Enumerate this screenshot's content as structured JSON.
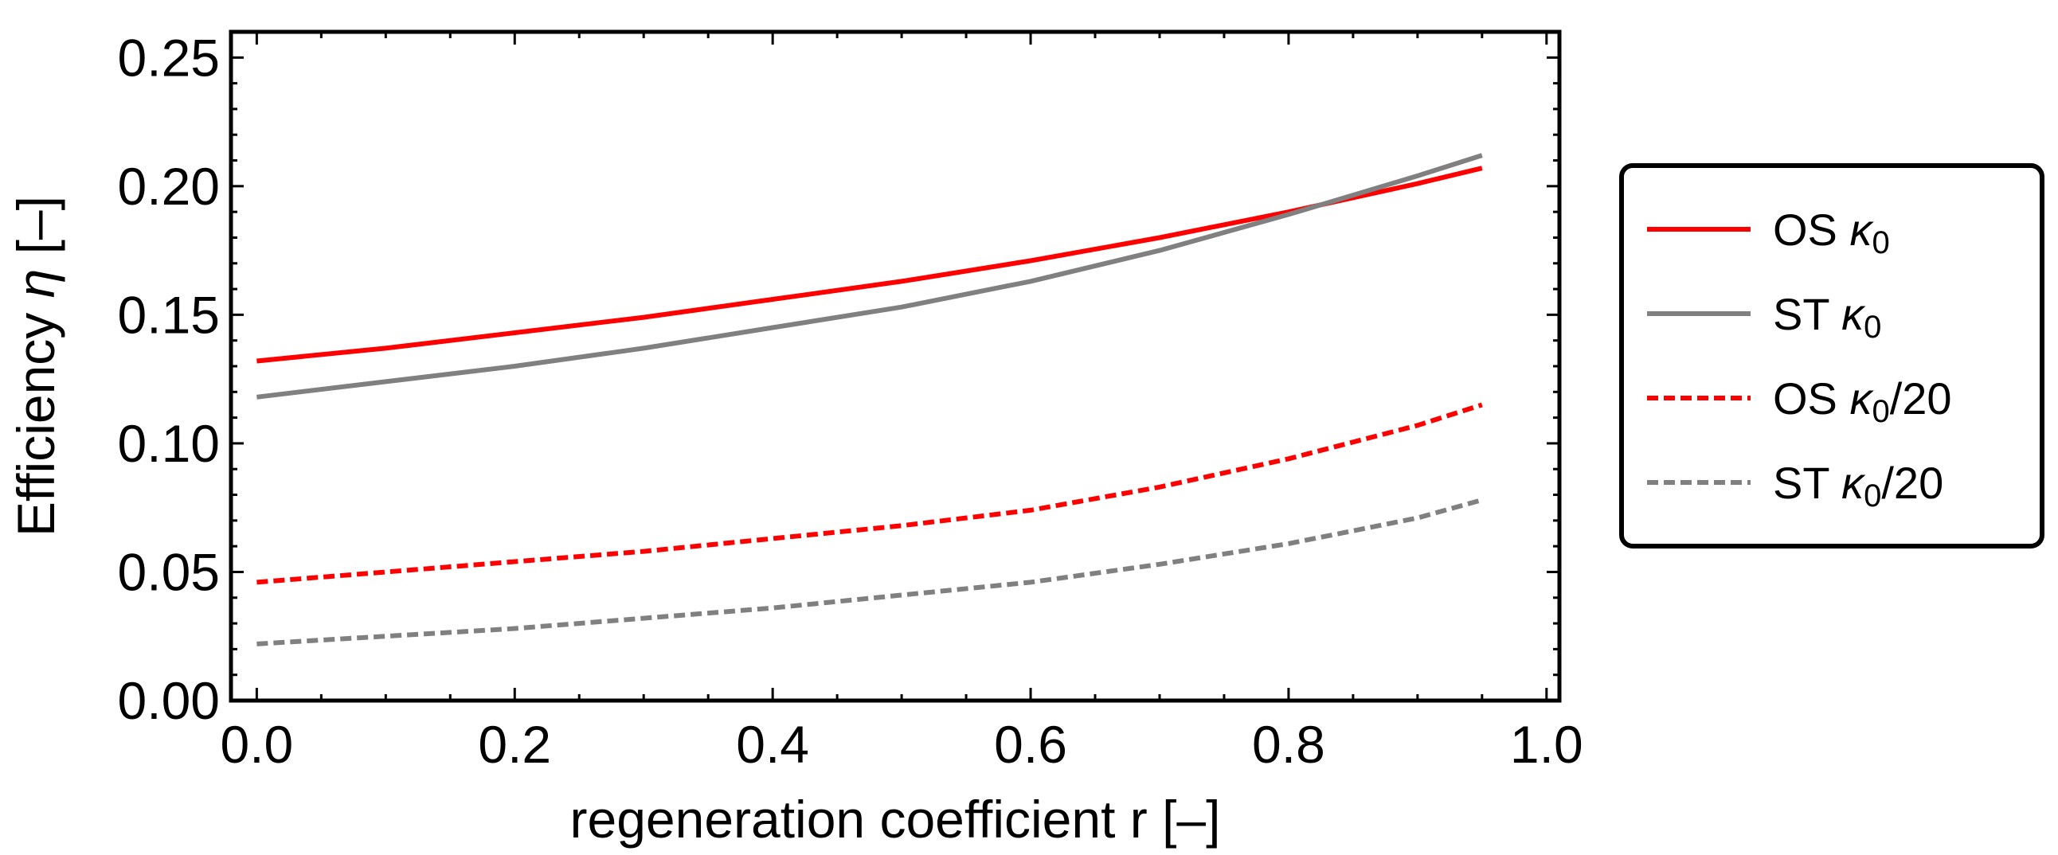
{
  "chart_data": {
    "type": "line",
    "title": "",
    "xlabel": "regeneration coefficient r [–]",
    "ylabel_prefix": "Efficiency ",
    "ylabel_symbol": "η",
    "ylabel_suffix": " [–]",
    "xlim": [
      -0.02,
      1.01
    ],
    "ylim": [
      0.0,
      0.26
    ],
    "xticks": [
      0.0,
      0.2,
      0.4,
      0.6,
      0.8,
      1.0
    ],
    "xtick_labels": [
      "0.0",
      "0.2",
      "0.4",
      "0.6",
      "0.8",
      "1.0"
    ],
    "yticks": [
      0.0,
      0.05,
      0.1,
      0.15,
      0.2,
      0.25
    ],
    "ytick_labels": [
      "0.00",
      "0.05",
      "0.10",
      "0.15",
      "0.20",
      "0.25"
    ],
    "grid": false,
    "legend_position": "right-outside",
    "series": [
      {
        "name": "OS κ0",
        "legend_main": "OS ",
        "legend_symbol": "κ",
        "legend_sub": "0",
        "legend_tail": "",
        "color": "#ff0000",
        "dashed": false,
        "x": [
          0.0,
          0.1,
          0.2,
          0.3,
          0.4,
          0.5,
          0.6,
          0.7,
          0.8,
          0.9,
          0.95
        ],
        "y": [
          0.132,
          0.137,
          0.143,
          0.149,
          0.156,
          0.163,
          0.171,
          0.18,
          0.19,
          0.201,
          0.207
        ]
      },
      {
        "name": "ST κ0",
        "legend_main": "ST ",
        "legend_symbol": "κ",
        "legend_sub": "0",
        "legend_tail": "",
        "color": "#808080",
        "dashed": false,
        "x": [
          0.0,
          0.1,
          0.2,
          0.3,
          0.4,
          0.5,
          0.6,
          0.7,
          0.8,
          0.9,
          0.95
        ],
        "y": [
          0.118,
          0.124,
          0.13,
          0.137,
          0.145,
          0.153,
          0.163,
          0.175,
          0.189,
          0.204,
          0.212
        ]
      },
      {
        "name": "OS κ0/20",
        "legend_main": "OS ",
        "legend_symbol": "κ",
        "legend_sub": "0",
        "legend_tail": "/20",
        "color": "#ff0000",
        "dashed": true,
        "x": [
          0.0,
          0.1,
          0.2,
          0.3,
          0.4,
          0.5,
          0.6,
          0.7,
          0.8,
          0.9,
          0.95
        ],
        "y": [
          0.046,
          0.05,
          0.054,
          0.058,
          0.063,
          0.068,
          0.074,
          0.083,
          0.094,
          0.107,
          0.115
        ]
      },
      {
        "name": "ST κ0/20",
        "legend_main": "ST ",
        "legend_symbol": "κ",
        "legend_sub": "0",
        "legend_tail": "/20",
        "color": "#808080",
        "dashed": true,
        "x": [
          0.0,
          0.1,
          0.2,
          0.3,
          0.4,
          0.5,
          0.6,
          0.7,
          0.8,
          0.9,
          0.95
        ],
        "y": [
          0.022,
          0.025,
          0.028,
          0.032,
          0.036,
          0.041,
          0.046,
          0.053,
          0.061,
          0.071,
          0.078
        ]
      }
    ]
  }
}
